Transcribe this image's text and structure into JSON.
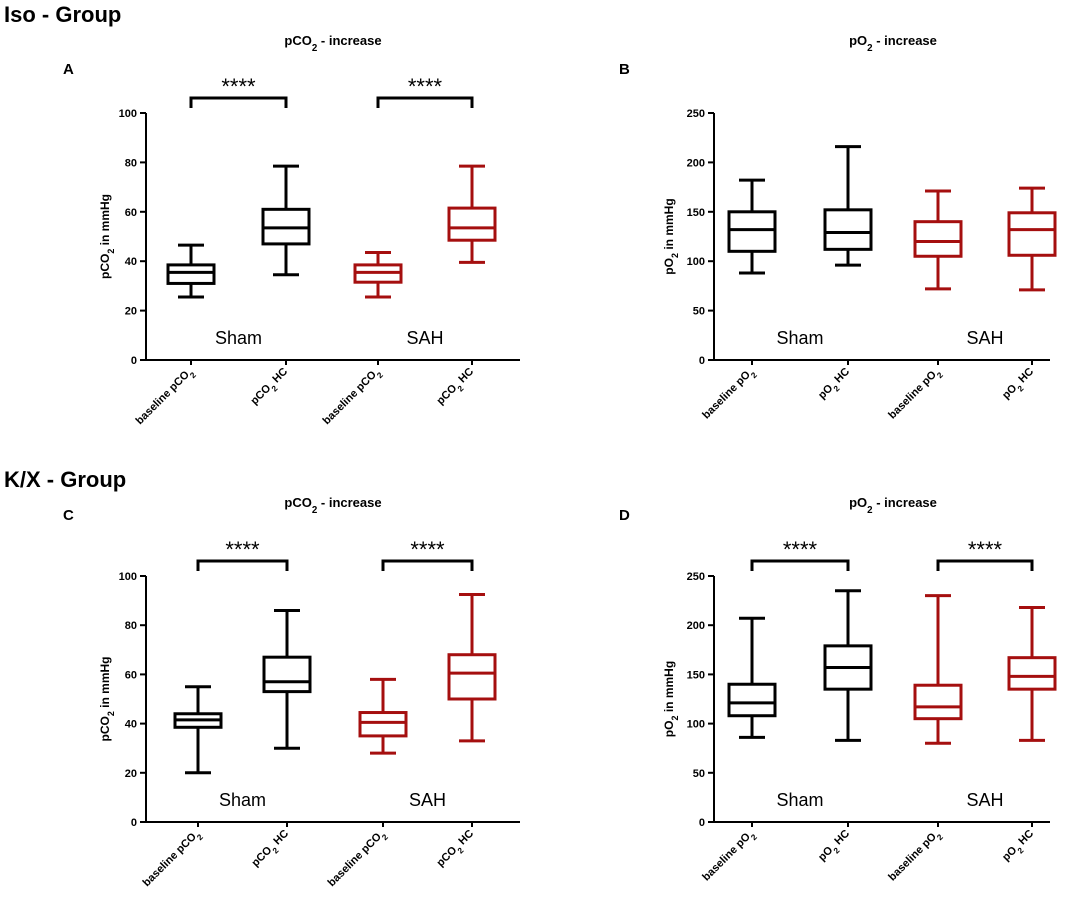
{
  "groups": [
    {
      "title": "Iso - Group"
    },
    {
      "title": "K/X -  Group"
    }
  ],
  "colors": {
    "sham": "#000000",
    "sah": "#a50f0f",
    "axis": "#000000"
  },
  "chart_data": [
    {
      "type": "box",
      "panel": "A",
      "title_parts": [
        [
          "pCO",
          ""
        ],
        [
          "2",
          "sub"
        ],
        [
          " - increase",
          ""
        ]
      ],
      "ylabel_parts": [
        [
          "pCO",
          ""
        ],
        [
          "2",
          "sub"
        ],
        [
          " in mmHg",
          ""
        ]
      ],
      "ylim": [
        0,
        100
      ],
      "yticks": [
        0,
        20,
        40,
        60,
        80,
        100
      ],
      "categories": [
        [
          [
            "baseline pCO",
            ""
          ],
          [
            "2",
            "sub"
          ]
        ],
        [
          [
            "pCO",
            ""
          ],
          [
            "2",
            "sub"
          ],
          [
            " HC",
            ""
          ]
        ],
        [
          [
            "baseline pCO",
            ""
          ],
          [
            "2",
            "sub"
          ]
        ],
        [
          [
            "pCO",
            ""
          ],
          [
            "2",
            "sub"
          ],
          [
            " HC",
            ""
          ]
        ]
      ],
      "series": [
        {
          "name": "Sham",
          "color": "sham",
          "boxes": [
            {
              "min": 25.5,
              "q1": 31,
              "median": 35.5,
              "q3": 38.5,
              "max": 46.5
            },
            {
              "min": 34.5,
              "q1": 47,
              "median": 53.5,
              "q3": 61,
              "max": 78.5
            }
          ]
        },
        {
          "name": "SAH",
          "color": "sah",
          "boxes": [
            {
              "min": 25.5,
              "q1": 31.5,
              "median": 35.5,
              "q3": 38.5,
              "max": 43.5
            },
            {
              "min": 39.5,
              "q1": 48.5,
              "median": 53.5,
              "q3": 61.5,
              "max": 78.5
            }
          ]
        }
      ],
      "group_labels": [
        "Sham",
        "SAH"
      ],
      "significance": [
        {
          "from": 0,
          "to": 1,
          "label": "****"
        },
        {
          "from": 2,
          "to": 3,
          "label": "****"
        }
      ]
    },
    {
      "type": "box",
      "panel": "B",
      "title_parts": [
        [
          "pO",
          ""
        ],
        [
          "2",
          "sub"
        ],
        [
          " - increase",
          ""
        ]
      ],
      "ylabel_parts": [
        [
          "pO",
          ""
        ],
        [
          "2",
          "sub"
        ],
        [
          " in mmHg",
          ""
        ]
      ],
      "ylim": [
        0,
        250
      ],
      "yticks": [
        0,
        50,
        100,
        150,
        200,
        250
      ],
      "categories": [
        [
          [
            "baseline pO",
            ""
          ],
          [
            "2",
            "sub"
          ]
        ],
        [
          [
            "pO",
            ""
          ],
          [
            "2",
            "sub"
          ],
          [
            " HC",
            ""
          ]
        ],
        [
          [
            "baseline pO",
            ""
          ],
          [
            "2",
            "sub"
          ]
        ],
        [
          [
            "pO",
            ""
          ],
          [
            "2",
            "sub"
          ],
          [
            " HC",
            ""
          ]
        ]
      ],
      "series": [
        {
          "name": "Sham",
          "color": "sham",
          "boxes": [
            {
              "min": 88,
              "q1": 110,
              "median": 132,
              "q3": 150,
              "max": 182
            },
            {
              "min": 96,
              "q1": 112,
              "median": 129,
              "q3": 152,
              "max": 216
            }
          ]
        },
        {
          "name": "SAH",
          "color": "sah",
          "boxes": [
            {
              "min": 72,
              "q1": 105,
              "median": 120,
              "q3": 140,
              "max": 171
            },
            {
              "min": 71,
              "q1": 106,
              "median": 132,
              "q3": 149,
              "max": 174
            }
          ]
        }
      ],
      "group_labels": [
        "Sham",
        "SAH"
      ],
      "significance": []
    },
    {
      "type": "box",
      "panel": "C",
      "title_parts": [
        [
          "pCO",
          ""
        ],
        [
          "2",
          "sub"
        ],
        [
          " - increase",
          ""
        ]
      ],
      "ylabel_parts": [
        [
          "pCO",
          ""
        ],
        [
          "2",
          "sub"
        ],
        [
          " in mmHg",
          ""
        ]
      ],
      "ylim": [
        0,
        100
      ],
      "yticks": [
        0,
        20,
        40,
        60,
        80,
        100
      ],
      "categories": [
        [
          [
            "baseline pCO",
            ""
          ],
          [
            "2",
            "sub"
          ]
        ],
        [
          [
            "pCO",
            ""
          ],
          [
            "2",
            "sub"
          ],
          [
            " HC",
            ""
          ]
        ],
        [
          [
            "baseline pCO",
            ""
          ],
          [
            "2",
            "sub"
          ]
        ],
        [
          [
            "pCO",
            ""
          ],
          [
            "2",
            "sub"
          ],
          [
            " HC",
            ""
          ]
        ]
      ],
      "series": [
        {
          "name": "Sham",
          "color": "sham",
          "boxes": [
            {
              "min": 20,
              "q1": 38.5,
              "median": 41.5,
              "q3": 44,
              "max": 55
            },
            {
              "min": 30,
              "q1": 53,
              "median": 57,
              "q3": 67,
              "max": 86
            }
          ]
        },
        {
          "name": "SAH",
          "color": "sah",
          "boxes": [
            {
              "min": 28,
              "q1": 35,
              "median": 40.5,
              "q3": 44.5,
              "max": 58
            },
            {
              "min": 33,
              "q1": 50,
              "median": 60.5,
              "q3": 68,
              "max": 92.5
            }
          ]
        }
      ],
      "group_labels": [
        "Sham",
        "SAH"
      ],
      "significance": [
        {
          "from": 0,
          "to": 1,
          "label": "****"
        },
        {
          "from": 2,
          "to": 3,
          "label": "****"
        }
      ]
    },
    {
      "type": "box",
      "panel": "D",
      "title_parts": [
        [
          "pO",
          ""
        ],
        [
          "2",
          "sub"
        ],
        [
          " - increase",
          ""
        ]
      ],
      "ylabel_parts": [
        [
          "pO",
          ""
        ],
        [
          "2",
          "sub"
        ],
        [
          " in mmHg",
          ""
        ]
      ],
      "ylim": [
        0,
        250
      ],
      "yticks": [
        0,
        50,
        100,
        150,
        200,
        250
      ],
      "categories": [
        [
          [
            "baseline pO",
            ""
          ],
          [
            "2",
            "sub"
          ]
        ],
        [
          [
            "pO",
            ""
          ],
          [
            "2",
            "sub"
          ],
          [
            " HC",
            ""
          ]
        ],
        [
          [
            "baseline pO",
            ""
          ],
          [
            "2",
            "sub"
          ]
        ],
        [
          [
            "pO",
            ""
          ],
          [
            "2",
            "sub"
          ],
          [
            " HC",
            ""
          ]
        ]
      ],
      "series": [
        {
          "name": "Sham",
          "color": "sham",
          "boxes": [
            {
              "min": 86,
              "q1": 108,
              "median": 121,
              "q3": 140,
              "max": 207
            },
            {
              "min": 83,
              "q1": 135,
              "median": 157,
              "q3": 179,
              "max": 235
            }
          ]
        },
        {
          "name": "SAH",
          "color": "sah",
          "boxes": [
            {
              "min": 80,
              "q1": 105,
              "median": 117,
              "q3": 139,
              "max": 230
            },
            {
              "min": 83,
              "q1": 135,
              "median": 148,
              "q3": 167,
              "max": 218
            }
          ]
        }
      ],
      "group_labels": [
        "Sham",
        "SAH"
      ],
      "significance": [
        {
          "from": 0,
          "to": 1,
          "label": "****"
        },
        {
          "from": 2,
          "to": 3,
          "label": "****"
        }
      ]
    }
  ]
}
